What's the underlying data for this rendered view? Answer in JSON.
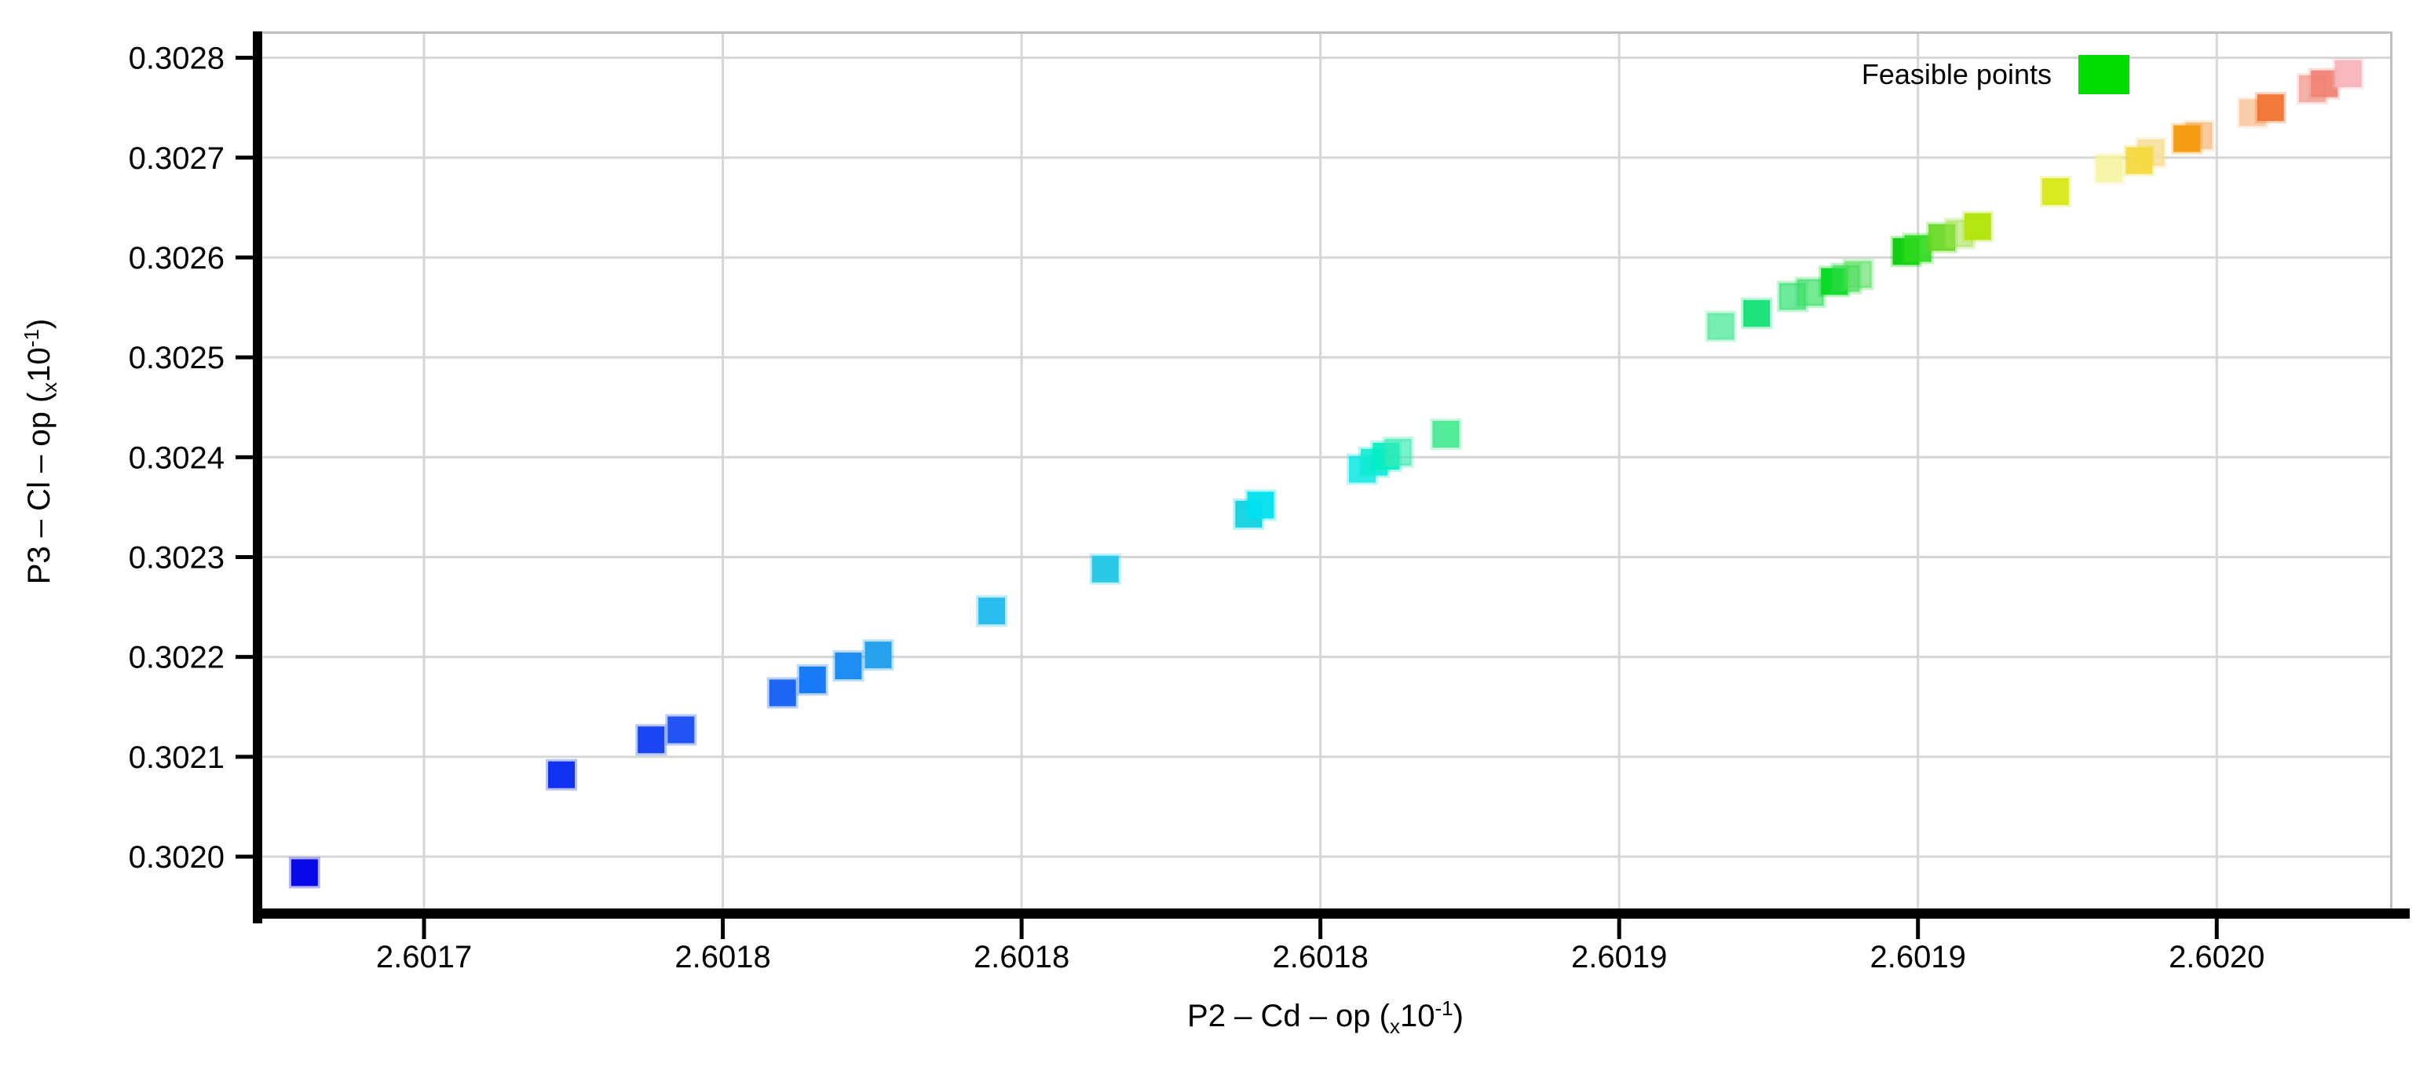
{
  "chart_data": {
    "type": "scatter",
    "title": "",
    "xlabel": "P2 – Cd – op (ₓ10⁻¹)",
    "ylabel": "P3 – Cl – op (ₓ10⁻¹)",
    "legend_label": "Feasible points",
    "legend_color": "#00DB00",
    "legend_position": "top-right",
    "grid": true,
    "marker": "square",
    "marker_size_px": 34,
    "xlim": [
      2.6016724,
      2.6020294
    ],
    "ylim": [
      0.3019434,
      0.3028264
    ],
    "x_ticks": [
      {
        "v": 2.6017,
        "label": "2.6017"
      },
      {
        "v": 2.60175,
        "label": "2.6018"
      },
      {
        "v": 2.6018,
        "label": "2.6018"
      },
      {
        "v": 2.60185,
        "label": "2.6018"
      },
      {
        "v": 2.6019,
        "label": "2.6019"
      },
      {
        "v": 2.60195,
        "label": "2.6019"
      },
      {
        "v": 2.602,
        "label": "2.6020"
      }
    ],
    "y_ticks": [
      {
        "v": 0.302,
        "label": "0.3020"
      },
      {
        "v": 0.3021,
        "label": "0.3021"
      },
      {
        "v": 0.3022,
        "label": "0.3022"
      },
      {
        "v": 0.3023,
        "label": "0.3023"
      },
      {
        "v": 0.3024,
        "label": "0.3024"
      },
      {
        "v": 0.3025,
        "label": "0.3025"
      },
      {
        "v": 0.3026,
        "label": "0.3026"
      },
      {
        "v": 0.3027,
        "label": "0.3027"
      },
      {
        "v": 0.3028,
        "label": "0.3028"
      }
    ],
    "points": [
      {
        "x": 2.60168,
        "y": 0.301984,
        "color": "#0A0AE8",
        "opacity": 1
      },
      {
        "x": 2.601723,
        "y": 0.302082,
        "color": "#1232F2",
        "opacity": 1
      },
      {
        "x": 2.601738,
        "y": 0.302117,
        "color": "#1A46F2",
        "opacity": 1
      },
      {
        "x": 2.601743,
        "y": 0.302127,
        "color": "#2154F2",
        "opacity": 1
      },
      {
        "x": 2.60176,
        "y": 0.302164,
        "color": "#1D66F4",
        "opacity": 1
      },
      {
        "x": 2.601765,
        "y": 0.302177,
        "color": "#187AF7",
        "opacity": 1
      },
      {
        "x": 2.601771,
        "y": 0.302191,
        "color": "#1F8DF3",
        "opacity": 1
      },
      {
        "x": 2.601776,
        "y": 0.302202,
        "color": "#27A3EC",
        "opacity": 1
      },
      {
        "x": 2.601795,
        "y": 0.302246,
        "color": "#29BEEF",
        "opacity": 1
      },
      {
        "x": 2.601814,
        "y": 0.302288,
        "color": "#2BC9E9",
        "opacity": 1
      },
      {
        "x": 2.601838,
        "y": 0.302343,
        "color": "#12D2E2",
        "opacity": 0.95
      },
      {
        "x": 2.60184,
        "y": 0.302352,
        "color": "#00E0EE",
        "opacity": 0.95
      },
      {
        "x": 2.601857,
        "y": 0.302388,
        "color": "#19E9E4",
        "opacity": 0.9
      },
      {
        "x": 2.601859,
        "y": 0.302395,
        "color": "#0EEBD3",
        "opacity": 0.9
      },
      {
        "x": 2.601861,
        "y": 0.302401,
        "color": "#00EDC4",
        "opacity": 0.9
      },
      {
        "x": 2.601863,
        "y": 0.302405,
        "color": "#35E9B2",
        "opacity": 0.65
      },
      {
        "x": 2.601871,
        "y": 0.302423,
        "color": "#41E98F",
        "opacity": 0.9
      },
      {
        "x": 2.601917,
        "y": 0.302531,
        "color": "#55E89D",
        "opacity": 0.8
      },
      {
        "x": 2.601923,
        "y": 0.302544,
        "color": "#15E276",
        "opacity": 0.95
      },
      {
        "x": 2.601929,
        "y": 0.302561,
        "color": "#32DF70",
        "opacity": 0.7
      },
      {
        "x": 2.601932,
        "y": 0.302565,
        "color": "#3ADF66",
        "opacity": 0.7
      },
      {
        "x": 2.601936,
        "y": 0.302576,
        "color": "#0CDA28",
        "opacity": 1
      },
      {
        "x": 2.601938,
        "y": 0.302579,
        "color": "#2FDA47",
        "opacity": 0.6
      },
      {
        "x": 2.60194,
        "y": 0.302583,
        "color": "#50DE57",
        "opacity": 0.6
      },
      {
        "x": 2.601948,
        "y": 0.302606,
        "color": "#14CE14",
        "opacity": 1
      },
      {
        "x": 2.60195,
        "y": 0.302609,
        "color": "#2ED91D",
        "opacity": 0.9
      },
      {
        "x": 2.601954,
        "y": 0.30262,
        "color": "#63D81D",
        "opacity": 0.9
      },
      {
        "x": 2.601957,
        "y": 0.302624,
        "color": "#A0E04C",
        "opacity": 0.55
      },
      {
        "x": 2.60196,
        "y": 0.302631,
        "color": "#B5E512",
        "opacity": 1
      },
      {
        "x": 2.601973,
        "y": 0.302666,
        "color": "#D9E922",
        "opacity": 1
      },
      {
        "x": 2.601982,
        "y": 0.302689,
        "color": "#F4F39A",
        "opacity": 0.85
      },
      {
        "x": 2.601989,
        "y": 0.302705,
        "color": "#F6DF96",
        "opacity": 0.85
      },
      {
        "x": 2.601987,
        "y": 0.302697,
        "color": "#F4D93F",
        "opacity": 0.95
      },
      {
        "x": 2.601997,
        "y": 0.302722,
        "color": "#F8C28C",
        "opacity": 0.85
      },
      {
        "x": 2.601995,
        "y": 0.302719,
        "color": "#F59D13",
        "opacity": 1
      },
      {
        "x": 2.602006,
        "y": 0.302745,
        "color": "#F8C9A2",
        "opacity": 0.9
      },
      {
        "x": 2.602009,
        "y": 0.30275,
        "color": "#F17432",
        "opacity": 0.95
      },
      {
        "x": 2.602016,
        "y": 0.302769,
        "color": "#F4A79D",
        "opacity": 0.9
      },
      {
        "x": 2.602018,
        "y": 0.302774,
        "color": "#F08476",
        "opacity": 0.95
      },
      {
        "x": 2.602022,
        "y": 0.302784,
        "color": "#F7B4BC",
        "opacity": 0.95
      }
    ]
  },
  "axes": {
    "x": {
      "title_prefix": "P2 – Cd – op (",
      "title_sub": "x",
      "title_base": "10",
      "title_sup": "-1",
      "title_suffix": ")"
    },
    "y": {
      "title_prefix": "P3 – Cl – op (",
      "title_sub": "x",
      "title_base": "10",
      "title_sup": "-1",
      "title_suffix": ")"
    }
  },
  "legend": {
    "label": "Feasible points"
  }
}
